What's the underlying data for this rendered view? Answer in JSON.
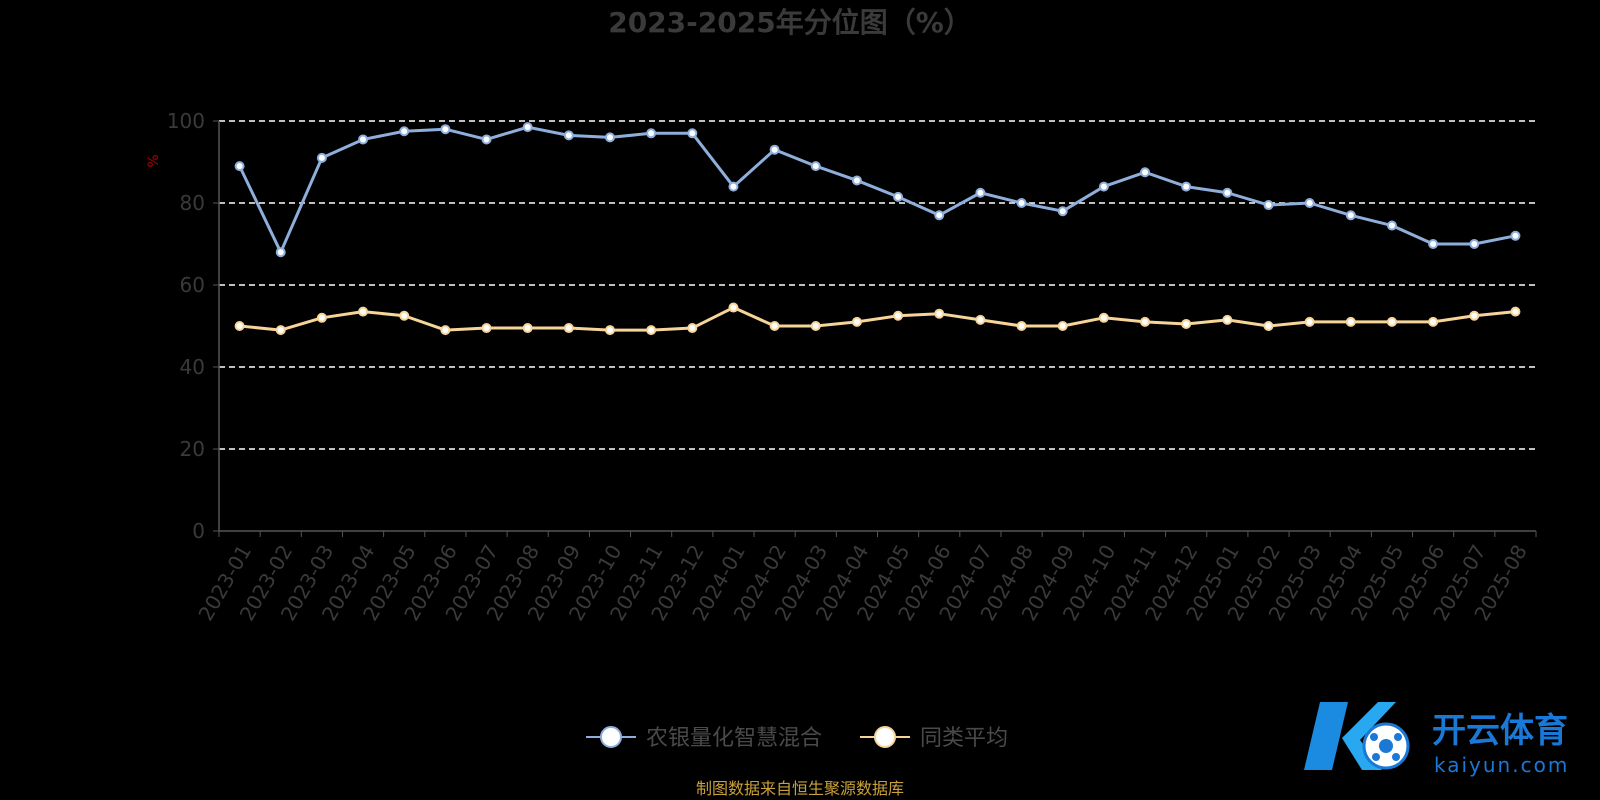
{
  "chart_data": {
    "type": "line",
    "title": "2023-2025年分位图（%）",
    "ylabel": "%",
    "xlabel": "",
    "ylim": [
      0,
      100
    ],
    "yticks": [
      0,
      20,
      40,
      60,
      80,
      100
    ],
    "grid": true,
    "legend_position": "bottom",
    "categories": [
      "2023-01",
      "2023-02",
      "2023-03",
      "2023-04",
      "2023-05",
      "2023-06",
      "2023-07",
      "2023-08",
      "2023-09",
      "2023-10",
      "2023-11",
      "2023-12",
      "2024-01",
      "2024-02",
      "2024-03",
      "2024-04",
      "2024-05",
      "2024-06",
      "2024-07",
      "2024-08",
      "2024-09",
      "2024-10",
      "2024-11",
      "2024-12",
      "2025-01",
      "2025-02",
      "2025-03",
      "2025-04",
      "2025-05",
      "2025-06",
      "2025-07",
      "2025-08"
    ],
    "series": [
      {
        "name": "农银量化智慧混合",
        "color": "#8eafdc",
        "values": [
          89,
          68,
          91,
          95.5,
          97.5,
          98,
          95.5,
          98.5,
          96.5,
          96,
          97,
          97,
          84,
          93,
          89,
          85.5,
          81.5,
          77,
          82.5,
          80,
          78,
          84,
          87.5,
          84,
          82.5,
          79.5,
          80,
          77,
          74.5,
          70,
          70,
          72
        ]
      },
      {
        "name": "同类平均",
        "color": "#f7d598",
        "values": [
          50,
          49,
          52,
          53.5,
          52.5,
          49,
          49.5,
          49.5,
          49.5,
          49,
          49,
          49.5,
          54.5,
          50,
          50,
          51,
          52.5,
          53,
          51.5,
          50,
          50,
          52,
          51,
          50.5,
          51.5,
          50,
          51,
          51,
          51,
          51,
          52.5,
          53.5
        ]
      }
    ]
  },
  "footer": {
    "source_text": "制图数据来自恒生聚源数据库"
  },
  "watermark": {
    "brand_cn": "开云体育",
    "brand_url": "kaiyun.com"
  },
  "colors": {
    "background": "#000000",
    "grid": "#ffffff",
    "axis": "#555555"
  }
}
